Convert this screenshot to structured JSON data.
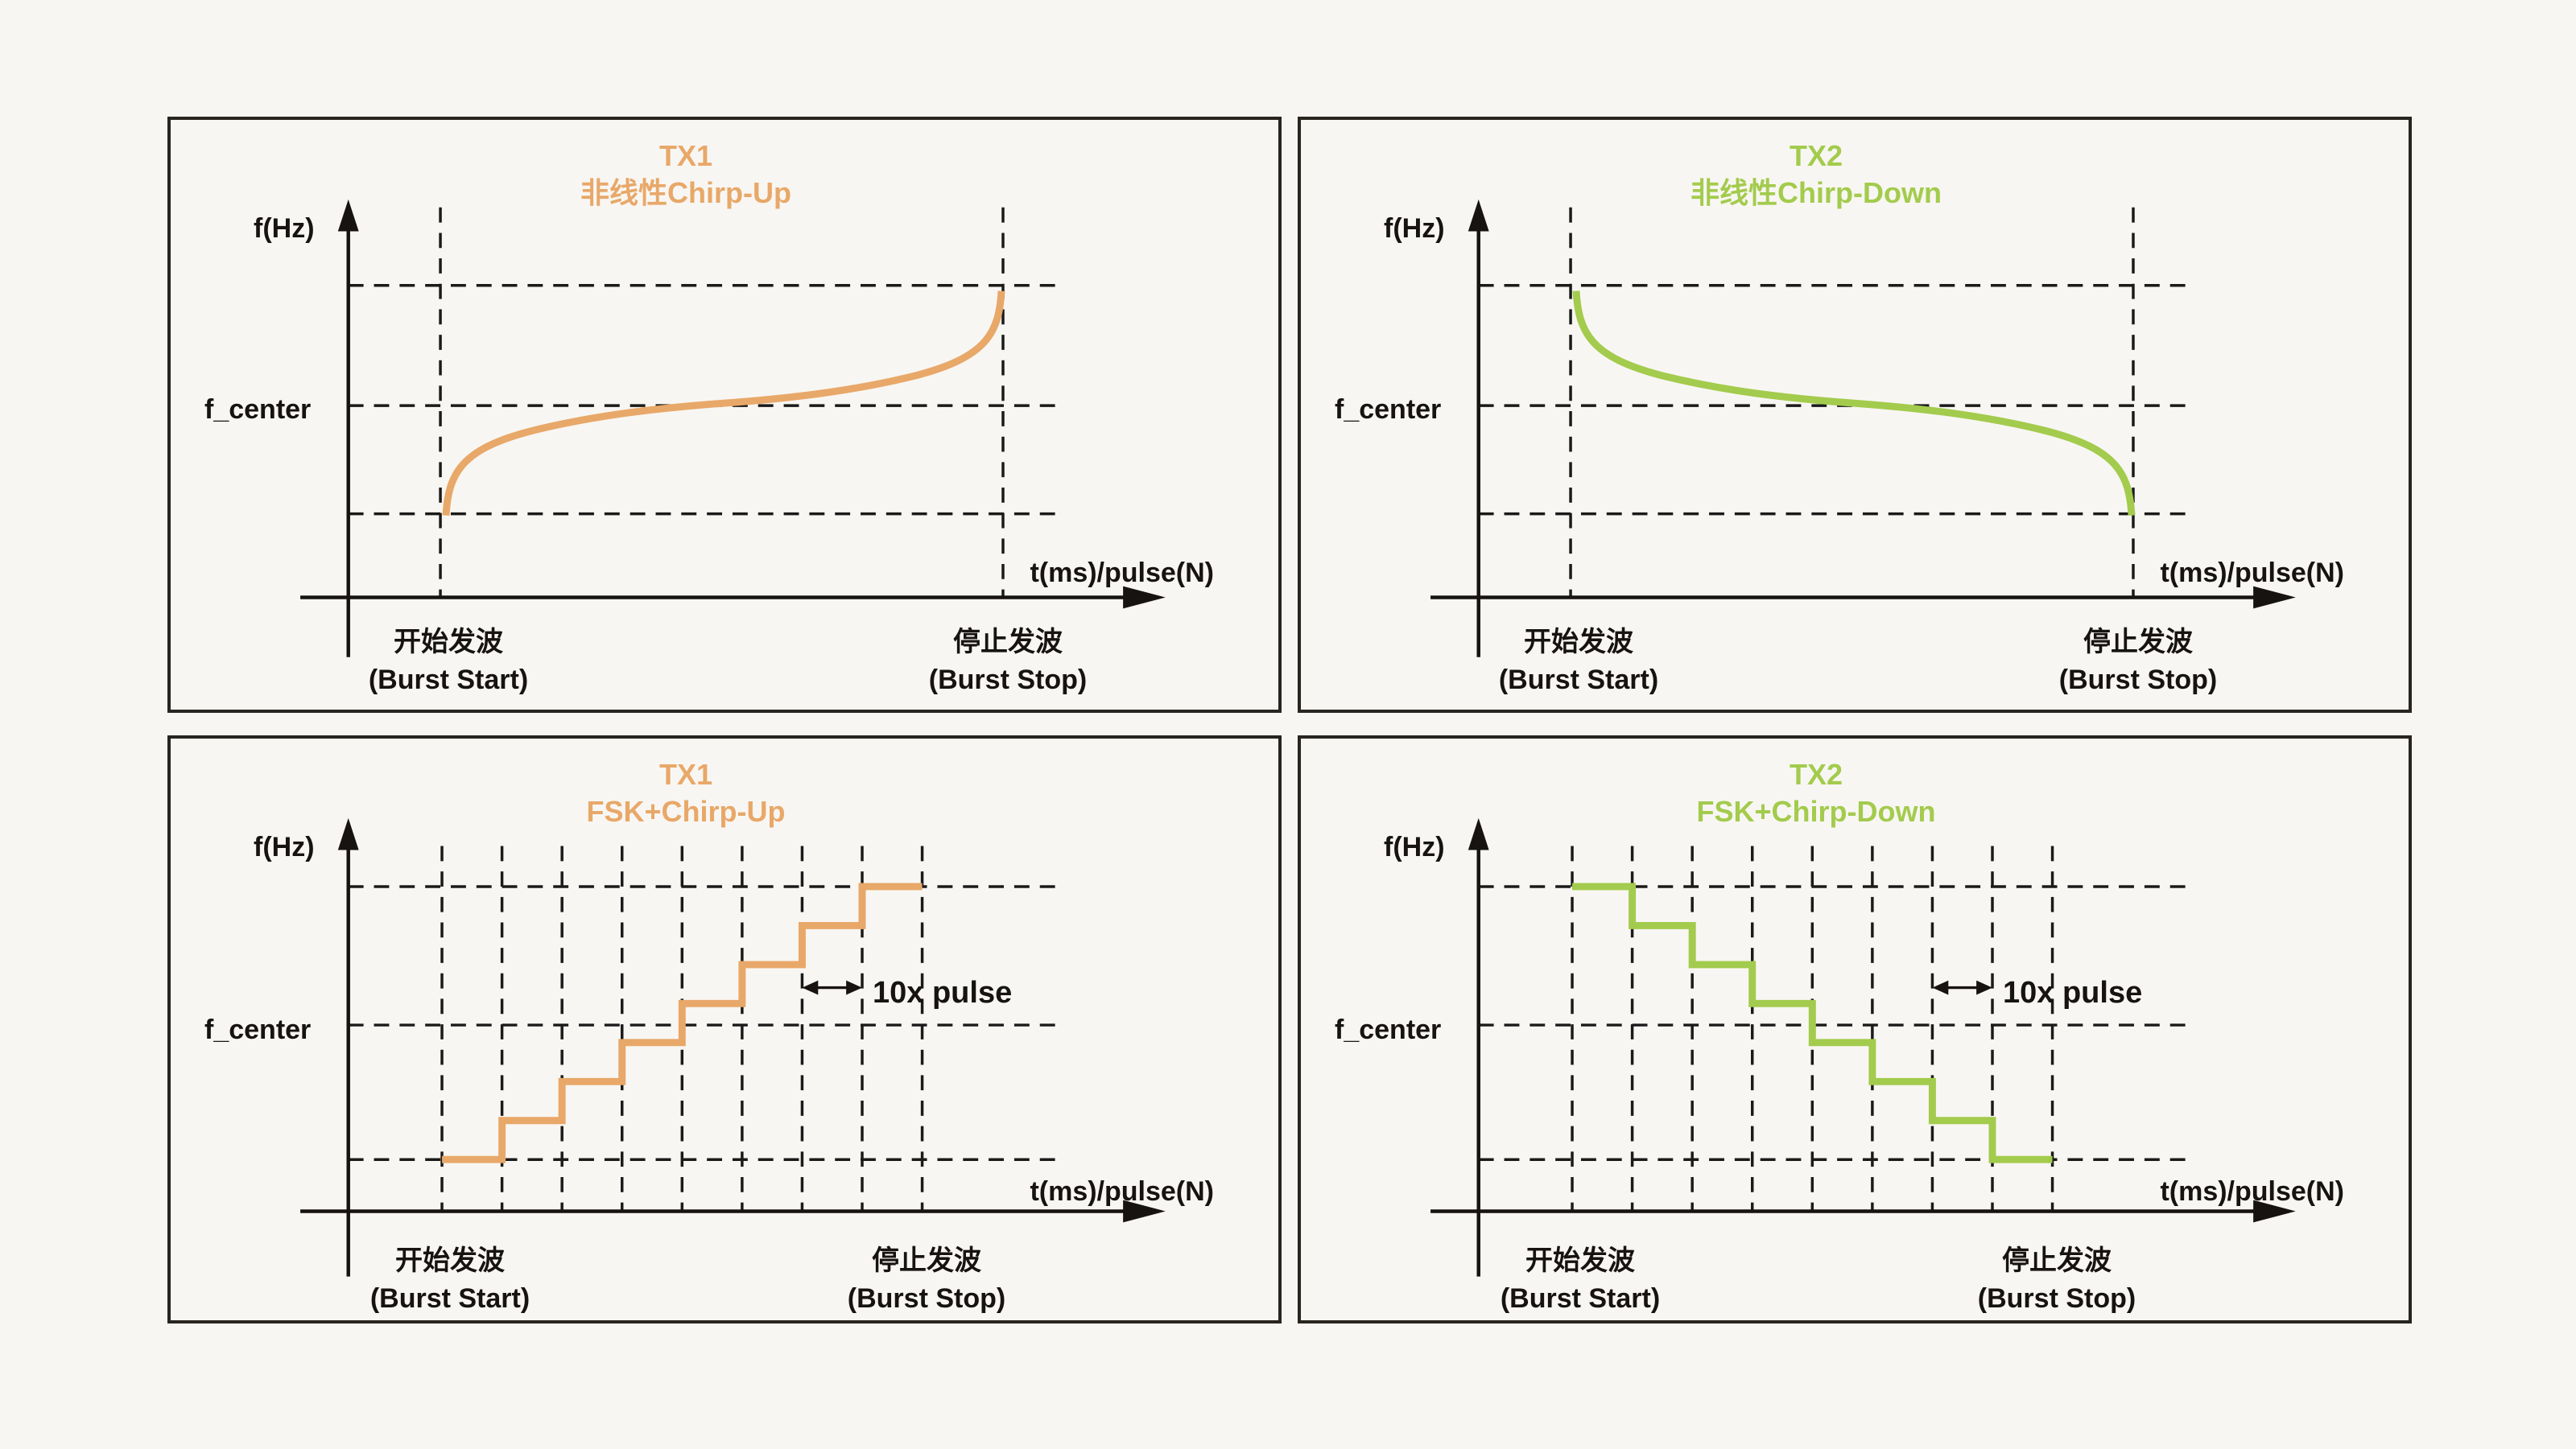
{
  "page": {
    "background": "#f8f6f2",
    "panel_border_color": "#28241f",
    "ink_color": "#161310"
  },
  "labels": {
    "f_axis": "f(Hz)",
    "t_axis": "t(ms)/pulse(N)",
    "f_center": "f_center",
    "burst_start_line1": "开始发波",
    "burst_start_line2": "(Burst Start)",
    "burst_stop_line1": "停止发波",
    "burst_stop_line2": "(Burst Stop)",
    "pulse_annotation": "10x pulse"
  },
  "panels": [
    {
      "id": "tx1-nonlinear-chirp-up",
      "title_line1": "TX1",
      "title_line2": "非线性Chirp-Up",
      "color": "#e8a869",
      "waveform": "nonlinear-chirp-up",
      "start_level": "f_min at burst start",
      "end_level": "f_max at burst stop",
      "crosses": "f_center at midpoint"
    },
    {
      "id": "tx2-nonlinear-chirp-down",
      "title_line1": "TX2",
      "title_line2": "非线性Chirp-Down",
      "color": "#a3cb4d",
      "waveform": "nonlinear-chirp-down",
      "start_level": "f_max at burst start",
      "end_level": "f_min at burst stop",
      "crosses": "f_center at midpoint"
    },
    {
      "id": "tx1-fsk-chirp-up",
      "title_line1": "TX1",
      "title_line2": "FSK+Chirp-Up",
      "color": "#e8a869",
      "waveform": "fsk-chirp-up",
      "steps": 8,
      "step_duration": "10x pulse",
      "start_level": "f_min at burst start",
      "end_level": "f_max at burst stop"
    },
    {
      "id": "tx2-fsk-chirp-down",
      "title_line1": "TX2",
      "title_line2": "FSK+Chirp-Down",
      "color": "#a3cb4d",
      "waveform": "fsk-chirp-down",
      "steps": 8,
      "step_duration": "10x pulse",
      "start_level": "f_max at burst start",
      "end_level": "f_min at burst stop"
    }
  ],
  "chart_data": [
    {
      "type": "line",
      "title": "TX1 非线性Chirp-Up",
      "xlabel": "t(ms)/pulse(N)",
      "ylabel": "f(Hz)",
      "series": [
        {
          "name": "TX1",
          "shape": "nonlinear chirp up: steep rise from f_min at burst start, flattens through f_center at midpoint, steep rise to f_max at burst stop",
          "color": "#e8a869"
        }
      ],
      "gridlines": [
        "f_max",
        "f_center",
        "f_min",
        "burst start",
        "burst stop"
      ],
      "grid": "dashed"
    },
    {
      "type": "line",
      "title": "TX2 非线性Chirp-Down",
      "xlabel": "t(ms)/pulse(N)",
      "ylabel": "f(Hz)",
      "series": [
        {
          "name": "TX2",
          "shape": "nonlinear chirp down: steep fall from f_max at burst start, flattens through f_center at midpoint, steep fall to f_min at burst stop",
          "color": "#a3cb4d"
        }
      ],
      "gridlines": [
        "f_max",
        "f_center",
        "f_min",
        "burst start",
        "burst stop"
      ],
      "grid": "dashed"
    },
    {
      "type": "step",
      "title": "TX1 FSK+Chirp-Up",
      "xlabel": "t(ms)/pulse(N)",
      "ylabel": "f(Hz)",
      "series": [
        {
          "name": "TX1",
          "shape": "ascending staircase",
          "steps": 8,
          "from": "f_min",
          "to": "f_max",
          "step_width": "10x pulse",
          "color": "#e8a869"
        }
      ],
      "annotation": "10x pulse",
      "grid": "dashed"
    },
    {
      "type": "step",
      "title": "TX2 FSK+Chirp-Down",
      "xlabel": "t(ms)/pulse(N)",
      "ylabel": "f(Hz)",
      "series": [
        {
          "name": "TX2",
          "shape": "descending staircase",
          "steps": 8,
          "from": "f_max",
          "to": "f_min",
          "step_width": "10x pulse",
          "color": "#a3cb4d"
        }
      ],
      "annotation": "10x pulse",
      "grid": "dashed"
    }
  ]
}
